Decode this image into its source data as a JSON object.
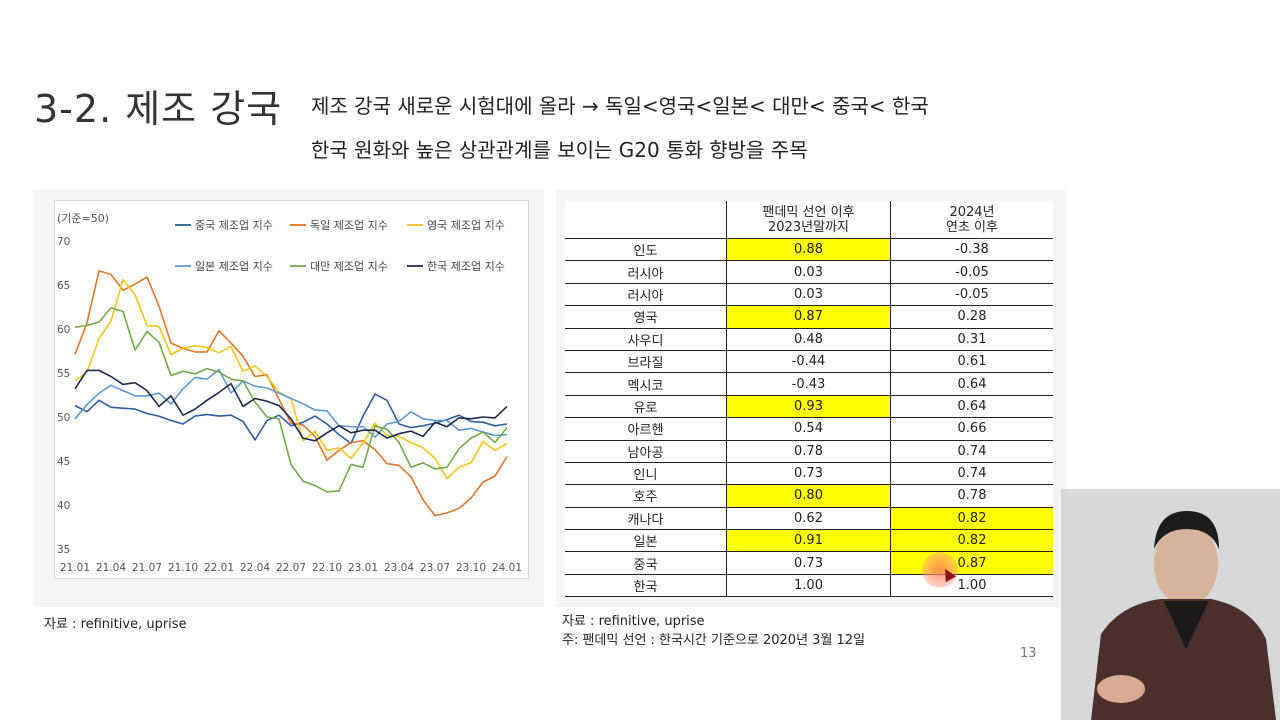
{
  "header": {
    "title": "3-2. 제조 강국",
    "line1": "제조 강국 새로운 시험대에 올라 → 독일<영국<일본< 대만< 중국< 한국",
    "line2": "한국 원화와 높은 상관관계를 보이는 G20 통화 향방을 주목"
  },
  "chart_data": {
    "type": "line",
    "unit_label": "(기준=50)",
    "ylim": [
      35,
      70
    ],
    "y_ticks": [
      "70",
      "65",
      "60",
      "55",
      "50",
      "45",
      "40",
      "35"
    ],
    "x_ticks": [
      "21.01",
      "21.04",
      "21.07",
      "21.10",
      "22.01",
      "22.04",
      "22.07",
      "22.10",
      "23.01",
      "23.04",
      "23.07",
      "23.10",
      "24.01"
    ],
    "x": [
      "21.01",
      "21.02",
      "21.03",
      "21.04",
      "21.05",
      "21.06",
      "21.07",
      "21.08",
      "21.09",
      "21.10",
      "21.11",
      "21.12",
      "22.01",
      "22.02",
      "22.03",
      "22.04",
      "22.05",
      "22.06",
      "22.07",
      "22.08",
      "22.09",
      "22.10",
      "22.11",
      "22.12",
      "23.01",
      "23.02",
      "23.03",
      "23.04",
      "23.05",
      "23.06",
      "23.07",
      "23.08",
      "23.09",
      "23.10",
      "23.11",
      "23.12",
      "24.01"
    ],
    "grid": false,
    "legend": "top",
    "series": [
      {
        "name": "중국 제조업 지수",
        "color": "#2e5f9e",
        "values": [
          51.3,
          50.6,
          51.9,
          51.1,
          51.0,
          50.9,
          50.4,
          50.1,
          49.6,
          49.2,
          50.1,
          50.3,
          50.1,
          50.2,
          49.5,
          47.4,
          49.6,
          50.2,
          49.0,
          49.4,
          50.1,
          49.2,
          48.0,
          47.0,
          50.1,
          52.6,
          51.9,
          49.2,
          48.8,
          49.0,
          49.3,
          49.7,
          50.2,
          49.5,
          49.4,
          49.0,
          49.2
        ]
      },
      {
        "name": "독일 제조업 지수",
        "color": "#e0772a",
        "values": [
          57.1,
          60.7,
          66.6,
          66.2,
          64.4,
          65.1,
          65.9,
          62.6,
          58.4,
          57.8,
          57.4,
          57.4,
          59.8,
          58.4,
          56.9,
          54.6,
          54.8,
          52.0,
          49.3,
          49.1,
          47.8,
          45.1,
          46.2,
          47.1,
          47.3,
          46.3,
          44.7,
          44.5,
          43.2,
          40.6,
          38.8,
          39.1,
          39.6,
          40.8,
          42.6,
          43.3,
          45.5
        ]
      },
      {
        "name": "영국 제조업 지수",
        "color": "#f5c518",
        "values": [
          54.1,
          55.1,
          58.9,
          60.9,
          65.6,
          63.9,
          60.4,
          60.3,
          57.1,
          57.8,
          58.1,
          57.9,
          57.3,
          58.0,
          55.2,
          55.8,
          54.6,
          52.8,
          52.1,
          47.3,
          48.4,
          46.2,
          46.5,
          45.3,
          47.0,
          49.3,
          47.9,
          47.8,
          47.1,
          46.5,
          45.3,
          43.0,
          44.3,
          44.8,
          47.2,
          46.2,
          47.0
        ]
      },
      {
        "name": "일본 제조업 지수",
        "color": "#5a9bd4",
        "values": [
          49.8,
          51.4,
          52.7,
          53.6,
          53.0,
          52.4,
          52.4,
          52.7,
          51.5,
          53.2,
          54.5,
          54.3,
          55.4,
          52.7,
          54.1,
          53.5,
          53.3,
          52.7,
          52.1,
          51.5,
          50.8,
          50.7,
          49.0,
          48.9,
          48.9,
          47.7,
          49.2,
          49.5,
          50.6,
          49.8,
          49.6,
          49.6,
          48.5,
          48.7,
          48.3,
          47.9,
          48.0
        ]
      },
      {
        "name": "대만 제조업 지수",
        "color": "#70ad47",
        "values": [
          60.2,
          60.4,
          60.8,
          62.4,
          62.0,
          57.6,
          59.7,
          58.5,
          54.7,
          55.2,
          54.9,
          55.5,
          55.1,
          54.3,
          54.1,
          51.7,
          50.0,
          49.8,
          44.6,
          42.7,
          42.2,
          41.5,
          41.6,
          44.6,
          44.3,
          49.0,
          48.6,
          47.1,
          44.3,
          44.8,
          44.1,
          44.3,
          46.4,
          47.6,
          48.3,
          47.1,
          48.8
        ]
      },
      {
        "name": "한국 제조업 지수",
        "color": "#1f2a4d",
        "values": [
          53.2,
          55.3,
          55.3,
          54.6,
          53.7,
          53.9,
          53.0,
          51.2,
          52.4,
          50.2,
          50.9,
          51.9,
          52.8,
          53.8,
          51.2,
          52.1,
          51.8,
          51.3,
          49.8,
          47.6,
          47.3,
          48.2,
          49.0,
          48.2,
          48.5,
          48.5,
          47.6,
          48.1,
          48.4,
          47.8,
          49.4,
          48.9,
          49.9,
          49.8,
          50.0,
          49.9,
          51.2
        ]
      }
    ]
  },
  "chart_source": "자료 : refinitive, uprise",
  "table": {
    "col1_line1": "팬데믹 선언 이후",
    "col1_line2": "2023년말까지",
    "col2_line1": "2024년",
    "col2_line2": "연초 이후",
    "rows": [
      {
        "name": "인도",
        "v1": "0.88",
        "v2": "-0.38",
        "h1": true,
        "h2": false
      },
      {
        "name": "러시아",
        "v1": "0.03",
        "v2": "-0.05",
        "h1": false,
        "h2": false
      },
      {
        "name": "러시아",
        "v1": "0.03",
        "v2": "-0.05",
        "h1": false,
        "h2": false
      },
      {
        "name": "영국",
        "v1": "0.87",
        "v2": "0.28",
        "h1": true,
        "h2": false
      },
      {
        "name": "사우디",
        "v1": "0.48",
        "v2": "0.31",
        "h1": false,
        "h2": false
      },
      {
        "name": "브라질",
        "v1": "-0.44",
        "v2": "0.61",
        "h1": false,
        "h2": false
      },
      {
        "name": "멕시코",
        "v1": "-0.43",
        "v2": "0.64",
        "h1": false,
        "h2": false
      },
      {
        "name": "유로",
        "v1": "0.93",
        "v2": "0.64",
        "h1": true,
        "h2": false
      },
      {
        "name": "아르헨",
        "v1": "0.54",
        "v2": "0.66",
        "h1": false,
        "h2": false
      },
      {
        "name": "남아공",
        "v1": "0.78",
        "v2": "0.74",
        "h1": false,
        "h2": false
      },
      {
        "name": "인니",
        "v1": "0.73",
        "v2": "0.74",
        "h1": false,
        "h2": false
      },
      {
        "name": "호주",
        "v1": "0.80",
        "v2": "0.78",
        "h1": true,
        "h2": false
      },
      {
        "name": "캐나다",
        "v1": "0.62",
        "v2": "0.82",
        "h1": false,
        "h2": true
      },
      {
        "name": "일본",
        "v1": "0.91",
        "v2": "0.82",
        "h1": true,
        "h2": true
      },
      {
        "name": "중국",
        "v1": "0.73",
        "v2": "0.87",
        "h1": false,
        "h2": true
      },
      {
        "name": "한국",
        "v1": "1.00",
        "v2": "1.00",
        "h1": false,
        "h2": false
      }
    ],
    "highlight_color": "#ffff00"
  },
  "table_source_line1": "자료 : refinitive, uprise",
  "table_source_line2": "주: 팬데믹 선언 : 한국시간 기준으로 2020년 3월 12일",
  "page_number": "13"
}
